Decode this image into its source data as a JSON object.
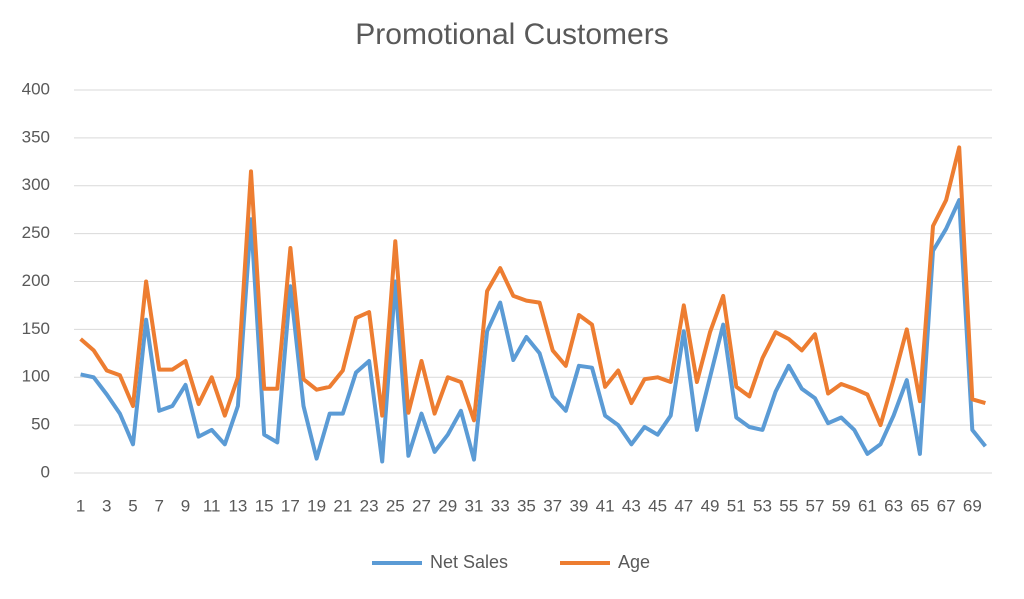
{
  "chart_data": {
    "type": "line",
    "title": "Promotional Customers",
    "categories": [
      1,
      null,
      3,
      null,
      5,
      null,
      7,
      null,
      9,
      null,
      11,
      null,
      13,
      null,
      15,
      null,
      17,
      null,
      19,
      null,
      21,
      null,
      23,
      null,
      25,
      null,
      27,
      null,
      29,
      null,
      31,
      null,
      33,
      null,
      35,
      null,
      37,
      null,
      39,
      null,
      41,
      null,
      43,
      null,
      45,
      null,
      47,
      null,
      49,
      null,
      51,
      null,
      53,
      null,
      55,
      null,
      57,
      null,
      59,
      null,
      61,
      null,
      63,
      null,
      65,
      null,
      67,
      null,
      69,
      null
    ],
    "series": [
      {
        "name": "Net Sales",
        "color": "#5b9bd5",
        "values": [
          103,
          100,
          82,
          62,
          30,
          160,
          65,
          70,
          92,
          38,
          45,
          30,
          70,
          265,
          40,
          32,
          195,
          70,
          15,
          62,
          62,
          105,
          117,
          12,
          200,
          18,
          62,
          22,
          40,
          65,
          14,
          148,
          178,
          118,
          142,
          125,
          80,
          65,
          112,
          110,
          60,
          50,
          30,
          48,
          40,
          60,
          148,
          45,
          100,
          155,
          58,
          48,
          45,
          85,
          112,
          88,
          78,
          52,
          58,
          45,
          20,
          30,
          60,
          97,
          20,
          232,
          255,
          285,
          45,
          28
        ]
      },
      {
        "name": "Age",
        "color": "#ed7d31",
        "values": [
          140,
          128,
          107,
          102,
          70,
          200,
          108,
          108,
          117,
          72,
          100,
          60,
          100,
          315,
          88,
          88,
          235,
          98,
          87,
          90,
          107,
          162,
          168,
          60,
          242,
          63,
          117,
          62,
          100,
          95,
          55,
          190,
          214,
          185,
          180,
          178,
          128,
          112,
          165,
          155,
          90,
          107,
          73,
          98,
          100,
          95,
          175,
          95,
          147,
          185,
          90,
          80,
          120,
          147,
          140,
          128,
          145,
          83,
          93,
          88,
          82,
          50,
          98,
          150,
          75,
          258,
          285,
          340,
          77,
          73
        ]
      }
    ],
    "ylim": [
      0,
      400
    ],
    "yticks": [
      0,
      50,
      100,
      150,
      200,
      250,
      300,
      350,
      400
    ],
    "grid": true,
    "legend": "bottom"
  }
}
